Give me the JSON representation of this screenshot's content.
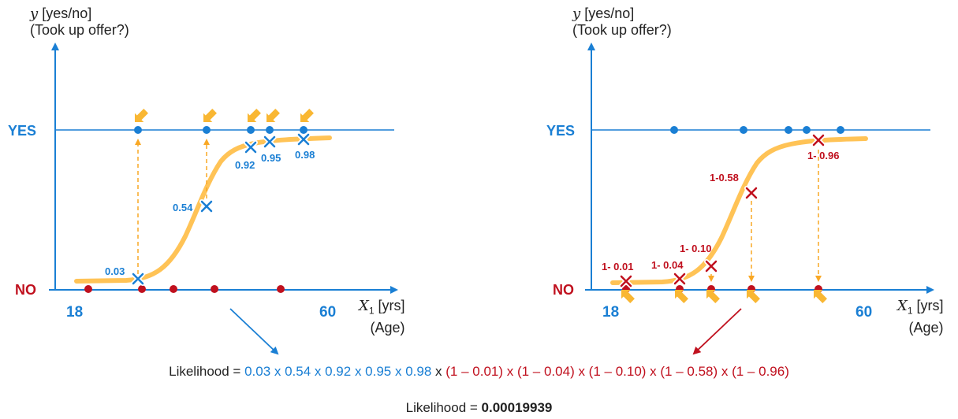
{
  "colors": {
    "axis": "#1a7fd4",
    "yes": "#1a7fd4",
    "no": "#c0101e",
    "curve": "#ffc04d",
    "arrow": "#f9a825"
  },
  "left_panel": {
    "y_label_var": "y",
    "y_label_unit": "[yes/no]",
    "y_label_sub": "(Took up offer?)",
    "yes_label": "YES",
    "no_label": "NO",
    "x_tick_min": "18",
    "x_tick_max": "60",
    "x_label_var": "X",
    "x_label_sub": "1",
    "x_label_unit": "[yrs]",
    "x_label_name": "(Age)",
    "probability_labels": [
      "0.03",
      "0.54",
      "0.92",
      "0.95",
      "0.98"
    ]
  },
  "right_panel": {
    "y_label_var": "y",
    "y_label_unit": "[yes/no]",
    "y_label_sub": "(Took up offer?)",
    "yes_label": "YES",
    "no_label": "NO",
    "x_tick_min": "18",
    "x_tick_max": "60",
    "x_label_var": "X",
    "x_label_sub": "1",
    "x_label_unit": "[yrs]",
    "x_label_name": "(Age)",
    "probability_labels": [
      "1- 0.01",
      "1- 0.04",
      "1- 0.10",
      "1-0.58",
      "1- 0.96"
    ]
  },
  "formula": {
    "prefix": "Likelihood = ",
    "blue_terms": "0.03 x 0.54 x 0.92 x 0.95 x 0.98",
    "joiner": " x ",
    "red_terms": "(1 – 0.01) x (1 – 0.04) x (1 – 0.10) x (1 – 0.58) x (1 – 0.96)"
  },
  "result": {
    "prefix": "Likelihood = ",
    "value": "0.00019939"
  }
}
